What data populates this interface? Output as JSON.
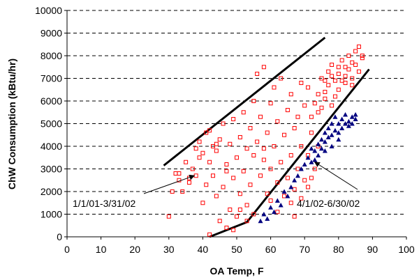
{
  "chart_data": {
    "type": "scatter",
    "xlabel": "OA Temp, F",
    "ylabel": "ChW Consumption (kBtu/hr)",
    "xlim": [
      0,
      100
    ],
    "ylim": [
      0,
      10000
    ],
    "x_ticks": [
      0,
      10,
      20,
      30,
      40,
      50,
      60,
      70,
      80,
      90,
      100
    ],
    "y_ticks": [
      0,
      1000,
      2000,
      3000,
      4000,
      5000,
      6000,
      7000,
      8000,
      9000,
      10000
    ],
    "x_tick_labels": [
      "0",
      "10",
      "20",
      "30",
      "40",
      "50",
      "60",
      "70",
      "80",
      "90",
      "100"
    ],
    "y_tick_labels": [
      "0",
      "1000",
      "2000",
      "3000",
      "4000",
      "5000",
      "6000",
      "7000",
      "8000",
      "9000",
      "10000"
    ],
    "grid": "horizontal-dashed",
    "legend": "none",
    "series": [
      {
        "marker": "open-square",
        "color": "#ff0000",
        "points": [
          [
            30,
            900
          ],
          [
            31,
            2000
          ],
          [
            33,
            2500
          ],
          [
            33,
            2800
          ],
          [
            34,
            2000
          ],
          [
            35,
            3300
          ],
          [
            36,
            2400
          ],
          [
            37,
            3000
          ],
          [
            38,
            2700
          ],
          [
            38,
            3900
          ],
          [
            39,
            4200
          ],
          [
            40,
            1500
          ],
          [
            40,
            3700
          ],
          [
            41,
            2300
          ],
          [
            41,
            4600
          ],
          [
            42,
            100
          ],
          [
            42,
            3300
          ],
          [
            43,
            4000
          ],
          [
            43,
            2700
          ],
          [
            44,
            1800
          ],
          [
            44,
            3800
          ],
          [
            45,
            700
          ],
          [
            45,
            4300
          ],
          [
            46,
            2200
          ],
          [
            46,
            5000
          ],
          [
            47,
            3200
          ],
          [
            47,
            400
          ],
          [
            48,
            4100
          ],
          [
            48,
            1200
          ],
          [
            49,
            2600
          ],
          [
            49,
            5200
          ],
          [
            50,
            3500
          ],
          [
            50,
            900
          ],
          [
            51,
            4400
          ],
          [
            51,
            1900
          ],
          [
            52,
            5500
          ],
          [
            52,
            2900
          ],
          [
            53,
            3900
          ],
          [
            53,
            1400
          ],
          [
            54,
            4800
          ],
          [
            54,
            2300
          ],
          [
            55,
            6000
          ],
          [
            55,
            3600
          ],
          [
            56,
            4200
          ],
          [
            56,
            7200
          ],
          [
            57,
            2700
          ],
          [
            57,
            5300
          ],
          [
            58,
            3400
          ],
          [
            58,
            7500
          ],
          [
            59,
            4600
          ],
          [
            59,
            1900
          ],
          [
            60,
            5900
          ],
          [
            60,
            3000
          ],
          [
            61,
            4000
          ],
          [
            61,
            6600
          ],
          [
            62,
            2400
          ],
          [
            62,
            5100
          ],
          [
            63,
            3300
          ],
          [
            63,
            7000
          ],
          [
            64,
            4500
          ],
          [
            64,
            1800
          ],
          [
            65,
            5600
          ],
          [
            65,
            2600
          ],
          [
            66,
            3600
          ],
          [
            66,
            6300
          ],
          [
            67,
            4800
          ],
          [
            67,
            2100
          ],
          [
            68,
            5300
          ],
          [
            68,
            3000
          ],
          [
            69,
            4000
          ],
          [
            69,
            6800
          ],
          [
            70,
            2500
          ],
          [
            70,
            5800
          ],
          [
            71,
            3600
          ],
          [
            71,
            6600
          ],
          [
            72,
            4600
          ],
          [
            72,
            5300
          ],
          [
            73,
            5900
          ],
          [
            73,
            3000
          ],
          [
            74,
            6300
          ],
          [
            74,
            4000
          ],
          [
            75,
            7000
          ],
          [
            75,
            5700
          ],
          [
            76,
            6400
          ],
          [
            76,
            6100
          ],
          [
            77,
            7300
          ],
          [
            77,
            6700
          ],
          [
            78,
            5800
          ],
          [
            78,
            7600
          ],
          [
            79,
            6200
          ],
          [
            79,
            6900
          ],
          [
            80,
            7200
          ],
          [
            80,
            6500
          ],
          [
            81,
            7800
          ],
          [
            81,
            6900
          ],
          [
            82,
            7500
          ],
          [
            82,
            7100
          ],
          [
            83,
            8000
          ],
          [
            83,
            7400
          ],
          [
            84,
            7700
          ],
          [
            84,
            7000
          ],
          [
            85,
            8200
          ],
          [
            85,
            7600
          ],
          [
            86,
            8400
          ],
          [
            86,
            7300
          ],
          [
            87,
            8000
          ],
          [
            87,
            7900
          ],
          [
            84,
            6700
          ],
          [
            66,
            1500
          ],
          [
            67,
            900
          ],
          [
            62,
            1100
          ],
          [
            60,
            1600
          ],
          [
            58,
            3900
          ],
          [
            55,
            1000
          ],
          [
            53,
            700
          ],
          [
            51,
            1200
          ],
          [
            49,
            300
          ],
          [
            47,
            2900
          ],
          [
            44,
            4100
          ],
          [
            42,
            4700
          ],
          [
            39,
            3500
          ],
          [
            36,
            2600
          ],
          [
            32,
            2800
          ],
          [
            71,
            2200
          ],
          [
            72,
            2600
          ],
          [
            69,
            1700
          ],
          [
            74,
            5500
          ],
          [
            76,
            6900
          ],
          [
            78,
            7100
          ],
          [
            80,
            7500
          ],
          [
            82,
            6800
          ]
        ]
      },
      {
        "marker": "filled-triangle",
        "color": "#000080",
        "points": [
          [
            57,
            700
          ],
          [
            58,
            1000
          ],
          [
            59,
            800
          ],
          [
            60,
            1300
          ],
          [
            61,
            1100
          ],
          [
            62,
            1600
          ],
          [
            63,
            1400
          ],
          [
            64,
            2000
          ],
          [
            65,
            1800
          ],
          [
            66,
            2200
          ],
          [
            67,
            2500
          ],
          [
            68,
            2700
          ],
          [
            69,
            3000
          ],
          [
            70,
            3200
          ],
          [
            71,
            3500
          ],
          [
            72,
            3300
          ],
          [
            73,
            3800
          ],
          [
            74,
            4100
          ],
          [
            74,
            3600
          ],
          [
            75,
            4300
          ],
          [
            75,
            3900
          ],
          [
            76,
            4600
          ],
          [
            76,
            4200
          ],
          [
            77,
            4800
          ],
          [
            77,
            4400
          ],
          [
            78,
            5000
          ],
          [
            78,
            4500
          ],
          [
            79,
            4700
          ],
          [
            79,
            5300
          ],
          [
            80,
            5000
          ],
          [
            80,
            4600
          ],
          [
            81,
            5200
          ],
          [
            81,
            4800
          ],
          [
            82,
            5000
          ],
          [
            82,
            5400
          ],
          [
            83,
            5100
          ],
          [
            83,
            4900
          ],
          [
            84,
            5300
          ],
          [
            84,
            5000
          ],
          [
            85,
            5400
          ],
          [
            85,
            5200
          ],
          [
            76,
            3800
          ],
          [
            78,
            4000
          ],
          [
            80,
            4300
          ],
          [
            72,
            3900
          ],
          [
            73,
            3400
          ]
        ]
      }
    ],
    "bound_lines": [
      {
        "color": "#000000",
        "points": [
          [
            28.5,
            3150
          ],
          [
            76,
            8800
          ]
        ]
      },
      {
        "color": "#000000",
        "points": [
          [
            42,
            0
          ],
          [
            53,
            650
          ],
          [
            89,
            7400
          ]
        ]
      }
    ],
    "annotations": [
      {
        "text": "1/1/01-3/31/02",
        "arrow_to": [
          37.5,
          2700
        ]
      },
      {
        "text": "4/1/02-6/30/02",
        "arrow_to": [
          73,
          3300
        ]
      }
    ]
  }
}
